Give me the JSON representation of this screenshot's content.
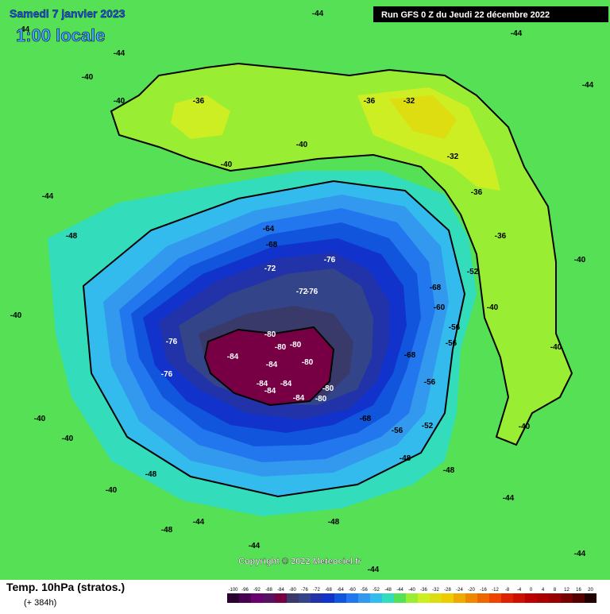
{
  "header": {
    "date": "Samedi 7 janvier 2023",
    "time": "1:00 locale",
    "run": "Run GFS 0 Z du Jeudi 22 décembre 2022"
  },
  "copyright": "Copyright © 2022 Meteociel.fr",
  "footer": {
    "title": "Temp. 10hPa (stratos.)",
    "lead": "(+ 384h)"
  },
  "scale": {
    "ticks": [
      -100,
      -96,
      -92,
      -88,
      -84,
      -80,
      -76,
      -72,
      -68,
      -64,
      -60,
      -56,
      -52,
      -48,
      -44,
      -40,
      -36,
      -32,
      -28,
      -24,
      -20,
      -16,
      -12,
      -8,
      -4,
      0,
      4,
      8,
      12,
      16,
      20
    ],
    "colors": [
      "#2a0030",
      "#4a0050",
      "#6a0070",
      "#5a1060",
      "#770044",
      "#3a3a6a",
      "#334488",
      "#2233aa",
      "#1133cc",
      "#1155dd",
      "#2277ee",
      "#3399ee",
      "#33bbee",
      "#33ddbb",
      "#55e055",
      "#99ee33",
      "#ccee22",
      "#dddd11",
      "#eecc00",
      "#eeaa00",
      "#ee8800",
      "#ee6600",
      "#ee4400",
      "#dd2200",
      "#cc1100",
      "#bb0000",
      "#aa0000",
      "#990000",
      "#770000",
      "#550000",
      "#220000"
    ]
  },
  "map_labels": [
    "-84",
    "-84",
    "-84",
    "-84",
    "-84",
    "-84",
    "-80",
    "-80",
    "-80",
    "-80",
    "-80",
    "-80",
    "-76",
    "-76",
    "-72",
    "-76",
    "-76",
    "-72",
    "-68",
    "-64",
    "-68",
    "-68",
    "-68",
    "-60",
    "-56",
    "-56",
    "-56",
    "-56",
    "-52",
    "-52",
    "-48",
    "-48",
    "-36",
    "-36",
    "-32",
    "-32",
    "-36",
    "-36",
    "-40",
    "-40",
    "-40",
    "-40",
    "-44",
    "-44",
    "-44",
    "-44",
    "-44",
    "-44",
    "-40",
    "-40",
    "-40",
    "-40",
    "-44",
    "-44",
    "-44",
    "-44",
    "-44",
    "-40",
    "-48",
    "-48",
    "-48",
    "-40",
    "-40",
    "-40",
    "-48"
  ]
}
